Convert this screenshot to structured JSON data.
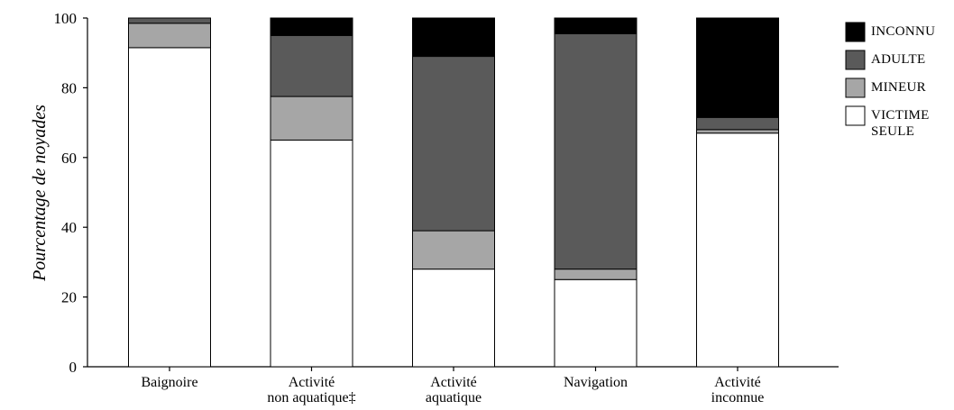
{
  "chart_data": {
    "type": "bar",
    "stacked": true,
    "title": "",
    "xlabel": "",
    "ylabel": "Pourcentage de noyades",
    "ylim": [
      0,
      100
    ],
    "yticks": [
      0,
      20,
      40,
      60,
      80,
      100
    ],
    "categories": [
      [
        "Baignoire"
      ],
      [
        "Activité",
        "non aquatique‡"
      ],
      [
        "Activité",
        "aquatique"
      ],
      [
        "Navigation"
      ],
      [
        "Activité",
        "inconnue"
      ]
    ],
    "series": [
      {
        "name": "VICTIME SEULE",
        "label_lines": [
          "VICTIME",
          "SEULE"
        ],
        "color": "#ffffff",
        "values": [
          91.5,
          65,
          28,
          25,
          67
        ]
      },
      {
        "name": "MINEUR",
        "label_lines": [
          "MINEUR"
        ],
        "color": "#a6a6a6",
        "values": [
          7,
          12.5,
          11,
          3,
          1
        ]
      },
      {
        "name": "ADULTE",
        "label_lines": [
          "ADULTE"
        ],
        "color": "#5a5a5a",
        "values": [
          1.5,
          17.5,
          50,
          67.5,
          3.5
        ]
      },
      {
        "name": "INCONNU",
        "label_lines": [
          "INCONNU"
        ],
        "color": "#000000",
        "values": [
          0,
          5,
          11,
          4.5,
          28.5
        ]
      }
    ],
    "legend_order": [
      "INCONNU",
      "ADULTE",
      "MINEUR",
      "VICTIME SEULE"
    ],
    "legend_position": "right",
    "grid": false
  }
}
